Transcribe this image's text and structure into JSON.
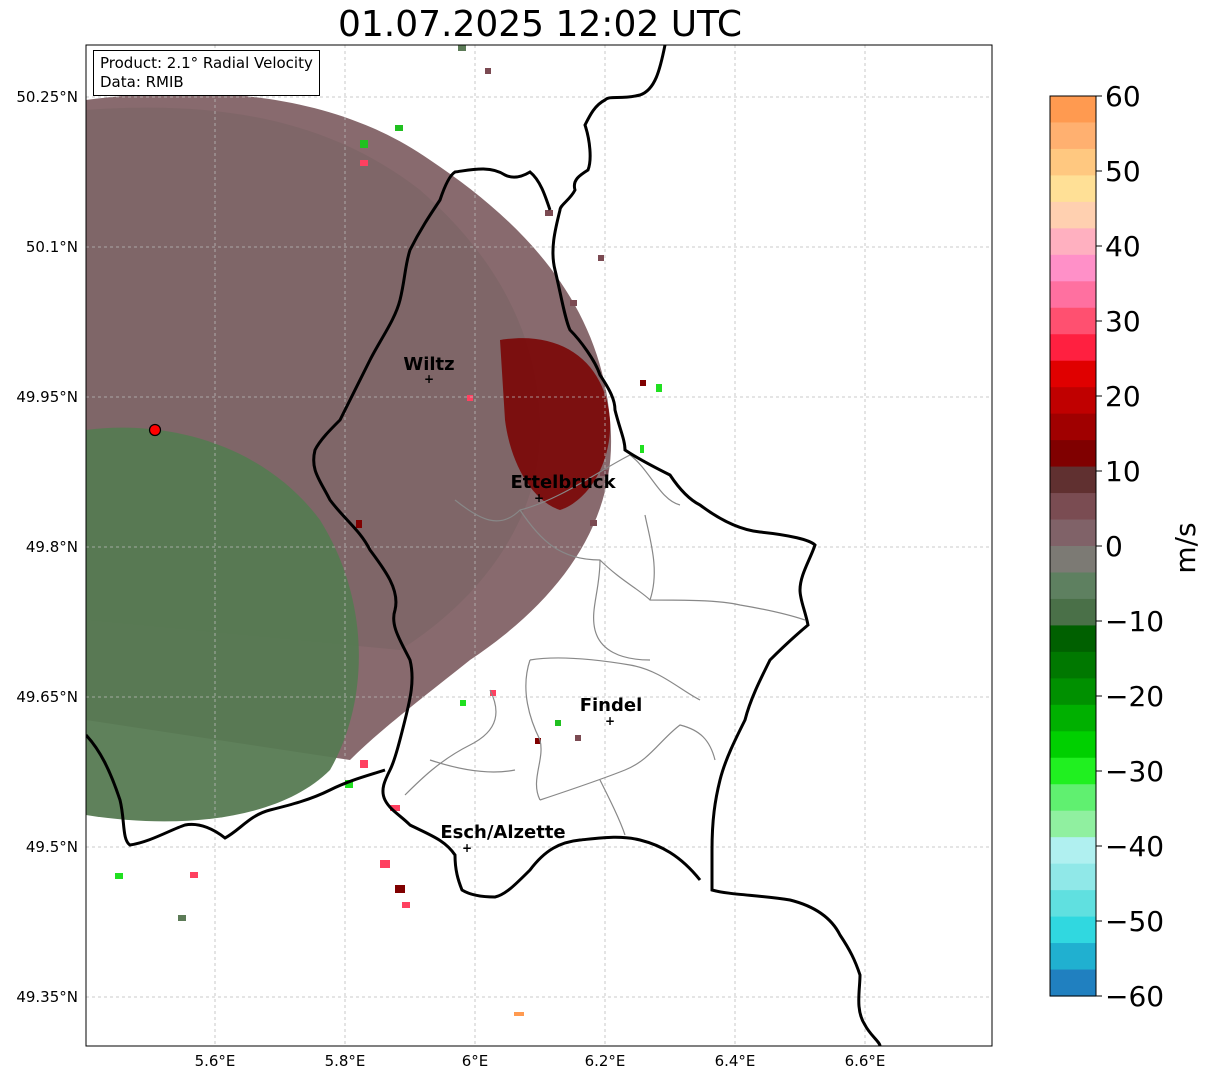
{
  "title": "01.07.2025 12:02 UTC",
  "info": {
    "product": "Product: 2.1° Radial Velocity",
    "data": "Data: RMIB"
  },
  "axes": {
    "lat_ticks": [
      "50.25°N",
      "50.1°N",
      "49.95°N",
      "49.8°N",
      "49.65°N",
      "49.5°N",
      "49.35°N"
    ],
    "lon_ticks": [
      "5.6°E",
      "5.8°E",
      "6°E",
      "6.2°E",
      "6.4°E",
      "6.6°E"
    ]
  },
  "cities": [
    {
      "name": "Wiltz"
    },
    {
      "name": "Ettelbruck"
    },
    {
      "name": "Findel"
    },
    {
      "name": "Esch/Alzette"
    }
  ],
  "colorbar": {
    "label": "m/s",
    "min": -60,
    "max": 60,
    "ticks": [
      "60",
      "50",
      "40",
      "30",
      "20",
      "10",
      "0",
      "−10",
      "−20",
      "−30",
      "−40",
      "−50",
      "−60"
    ],
    "colors": [
      "#ff9a50",
      "#ffb070",
      "#ffc880",
      "#ffe096",
      "#ffd0b0",
      "#ffb0c0",
      "#ff90c8",
      "#ff70a0",
      "#ff5070",
      "#ff2040",
      "#e00000",
      "#c00000",
      "#a00000",
      "#800000",
      "#603030",
      "#7a4c52",
      "#806268",
      "#7c7a74",
      "#5e8060",
      "#4a7048",
      "#006000",
      "#007800",
      "#009000",
      "#00b000",
      "#00d000",
      "#20f020",
      "#60f070",
      "#90f0a0",
      "#b0f0f0",
      "#90e8e8",
      "#60e0e0",
      "#30d8e0",
      "#20b0d0",
      "#2080c0"
    ]
  }
}
